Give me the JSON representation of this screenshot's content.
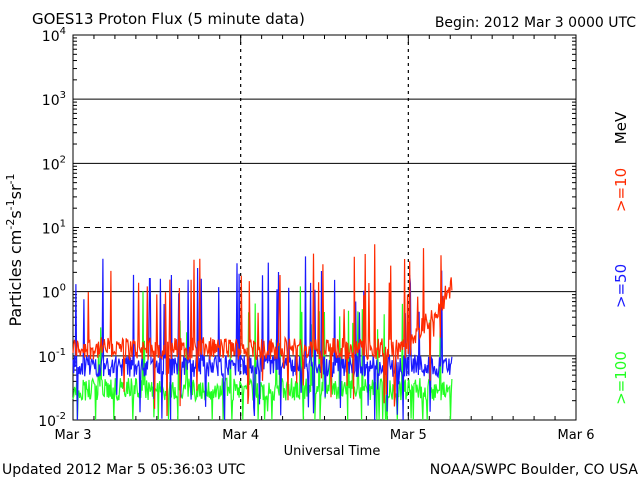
{
  "chart_data": {
    "type": "line",
    "title": "GOES13 Proton Flux (5 minute data)",
    "begin_label": "Begin: 2012 Mar 3 0000 UTC",
    "xlabel": "Universal Time",
    "ylabel": "Particles cm",
    "ylabel_sup1": "-2",
    "ylabel_mid1": "s",
    "ylabel_sup2": "-1",
    "ylabel_mid2": "sr",
    "ylabel_sup3": "-1",
    "y_scale": "log",
    "ylim": [
      0.01,
      10000
    ],
    "xlim_days": [
      0,
      3
    ],
    "x_ticks": [
      "Mar 3",
      "Mar 4",
      "Mar 5",
      "Mar 6"
    ],
    "y_ticks": [
      {
        "base": "10",
        "exp": "-2"
      },
      {
        "base": "10",
        "exp": "-1"
      },
      {
        "base": "10",
        "exp": "0"
      },
      {
        "base": "10",
        "exp": "1"
      },
      {
        "base": "10",
        "exp": "2"
      },
      {
        "base": "10",
        "exp": "3"
      },
      {
        "base": "10",
        "exp": "4"
      }
    ],
    "grid_solid_at": [
      0.1,
      1,
      100,
      1000
    ],
    "grid_dashed_at": [
      10
    ],
    "series": [
      {
        "name": ">=10",
        "color": "#ff2a00",
        "approx_level": 0.13,
        "rise_after_day": 2.0,
        "end_value": 1.2,
        "end_day": 2.26
      },
      {
        "name": ">=50",
        "color": "#1a1aff",
        "approx_level": 0.07,
        "end_day": 2.26
      },
      {
        "name": ">=100",
        "color": "#22ff22",
        "approx_level": 0.03,
        "end_day": 2.26
      }
    ],
    "units_label": "MeV"
  },
  "footer": {
    "updated": "Updated 2012 Mar  5 05:36:03 UTC",
    "credit": "NOAA/SWPC Boulder, CO USA"
  }
}
